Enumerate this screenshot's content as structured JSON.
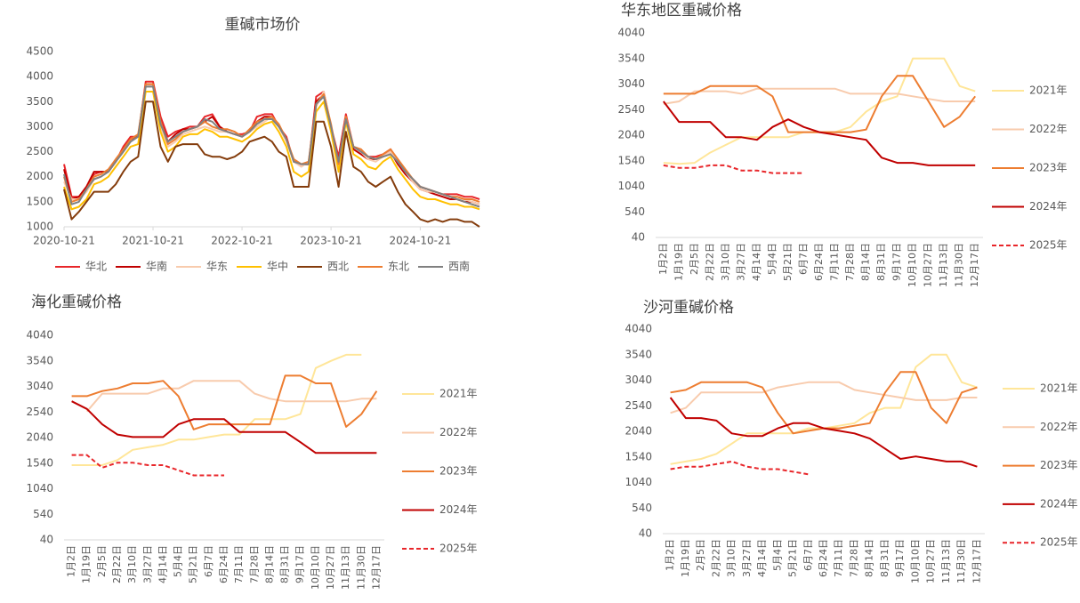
{
  "chart_data": [
    {
      "type": "line",
      "title": "重碱市场价",
      "legend": "bottom",
      "grid": false,
      "x": [
        "2020-10-21",
        "2020-11-21",
        "2020-12-21",
        "2021-01-21",
        "2021-02-21",
        "2021-03-21",
        "2021-04-21",
        "2021-05-21",
        "2021-06-21",
        "2021-07-21",
        "2021-08-21",
        "2021-09-21",
        "2021-10-21",
        "2021-11-21",
        "2021-12-21",
        "2022-01-21",
        "2022-02-21",
        "2022-03-21",
        "2022-04-21",
        "2022-05-21",
        "2022-06-21",
        "2022-07-21",
        "2022-08-21",
        "2022-09-21",
        "2022-10-21",
        "2022-11-21",
        "2022-12-21",
        "2023-01-21",
        "2023-02-21",
        "2023-03-21",
        "2023-04-21",
        "2023-05-21",
        "2023-06-21",
        "2023-07-21",
        "2023-08-21",
        "2023-09-21",
        "2023-10-21",
        "2023-11-21",
        "2023-12-21",
        "2024-01-21",
        "2024-02-21",
        "2024-03-21",
        "2024-04-21",
        "2024-05-21",
        "2024-06-21",
        "2024-07-21",
        "2024-08-21",
        "2024-09-21",
        "2024-10-21",
        "2024-11-21",
        "2024-12-21",
        "2025-01-21",
        "2025-02-21",
        "2025-03-21",
        "2025-04-21",
        "2025-05-21",
        "2025-06-21"
      ],
      "xlim": [
        "2020-10-21",
        "2025-06-21"
      ],
      "xticks": [
        "2020-10-21",
        "2021-10-21",
        "2022-10-21",
        "2023-10-21",
        "2024-10-21"
      ],
      "ylim": [
        1000,
        4500
      ],
      "yticks": [
        1000,
        1500,
        2000,
        2500,
        3000,
        3500,
        4000,
        4500
      ],
      "series": [
        {
          "name": "华北",
          "color": "#e8262a",
          "values": [
            2250,
            1600,
            1600,
            1800,
            2050,
            2100,
            2100,
            2300,
            2600,
            2800,
            2800,
            3900,
            3900,
            3200,
            2800,
            2900,
            2950,
            3000,
            3000,
            3200,
            3250,
            3000,
            2900,
            2850,
            2850,
            2900,
            3200,
            3250,
            3250,
            3000,
            2800,
            2300,
            2250,
            2250,
            3600,
            3700,
            3000,
            2400,
            3250,
            2600,
            2500,
            2400,
            2400,
            2450,
            2550,
            2300,
            2100,
            1950,
            1800,
            1750,
            1700,
            1650,
            1650,
            1650,
            1600,
            1600,
            1550
          ]
        },
        {
          "name": "华南",
          "color": "#c00000",
          "values": [
            2150,
            1550,
            1600,
            1800,
            2100,
            2100,
            2100,
            2300,
            2550,
            2750,
            2800,
            3850,
            3850,
            3100,
            2700,
            2850,
            2950,
            2950,
            3000,
            3100,
            3200,
            3000,
            2900,
            2850,
            2800,
            2900,
            3100,
            3200,
            3200,
            3000,
            2750,
            2300,
            2250,
            2250,
            3500,
            3650,
            3000,
            2300,
            3200,
            2550,
            2450,
            2350,
            2350,
            2400,
            2500,
            2250,
            2050,
            1900,
            1750,
            1700,
            1650,
            1600,
            1550,
            1550,
            1500,
            1500,
            1450
          ]
        },
        {
          "name": "华东",
          "color": "#f8cbad",
          "values": [
            1900,
            1550,
            1550,
            1700,
            1950,
            2000,
            2100,
            2300,
            2500,
            2700,
            2800,
            3800,
            3800,
            3000,
            2600,
            2700,
            2850,
            2900,
            2950,
            3000,
            2950,
            2900,
            2900,
            2850,
            2800,
            2900,
            3000,
            3100,
            3200,
            3000,
            2700,
            2300,
            2200,
            2300,
            3400,
            3700,
            3000,
            2200,
            3200,
            2600,
            2500,
            2350,
            2300,
            2400,
            2500,
            2300,
            2100,
            1900,
            1750,
            1700,
            1700,
            1650,
            1600,
            1550,
            1550,
            1500,
            1450
          ]
        },
        {
          "name": "华中",
          "color": "#ffc000",
          "values": [
            1800,
            1350,
            1400,
            1550,
            1850,
            1900,
            2000,
            2200,
            2400,
            2600,
            2650,
            3700,
            3700,
            2900,
            2500,
            2600,
            2800,
            2850,
            2850,
            2950,
            2900,
            2800,
            2800,
            2750,
            2700,
            2800,
            2950,
            3050,
            3100,
            2900,
            2600,
            2100,
            2000,
            2100,
            3300,
            3500,
            2900,
            2100,
            3100,
            2450,
            2350,
            2200,
            2150,
            2300,
            2400,
            2150,
            1950,
            1750,
            1600,
            1550,
            1550,
            1500,
            1450,
            1450,
            1400,
            1400,
            1350
          ]
        },
        {
          "name": "西北",
          "color": "#843c0c",
          "values": [
            1750,
            1150,
            1300,
            1500,
            1700,
            1700,
            1700,
            1850,
            2100,
            2300,
            2400,
            3500,
            3500,
            2600,
            2300,
            2600,
            2650,
            2650,
            2650,
            2450,
            2400,
            2400,
            2350,
            2400,
            2500,
            2700,
            2750,
            2800,
            2700,
            2500,
            2400,
            1800,
            1800,
            1800,
            3100,
            3100,
            2600,
            1800,
            2900,
            2200,
            2100,
            1900,
            1800,
            1900,
            2000,
            1700,
            1450,
            1300,
            1150,
            1100,
            1150,
            1100,
            1150,
            1150,
            1100,
            1100,
            1000
          ]
        },
        {
          "name": "东北",
          "color": "#ed7d31",
          "values": [
            2000,
            1500,
            1550,
            1750,
            2000,
            2050,
            2150,
            2350,
            2550,
            2750,
            2850,
            3850,
            3850,
            3100,
            2650,
            2750,
            2900,
            2950,
            3000,
            3100,
            3000,
            2950,
            2950,
            2900,
            2800,
            2950,
            3100,
            3150,
            3200,
            3050,
            2750,
            2350,
            2250,
            2300,
            3450,
            3650,
            3050,
            2250,
            3200,
            2600,
            2550,
            2400,
            2350,
            2450,
            2550,
            2350,
            2150,
            1950,
            1800,
            1750,
            1700,
            1650,
            1600,
            1600,
            1550,
            1550,
            1500
          ]
        },
        {
          "name": "西南",
          "color": "#808080",
          "values": [
            2050,
            1450,
            1500,
            1750,
            1950,
            2000,
            2100,
            2300,
            2500,
            2700,
            2800,
            3800,
            3800,
            3050,
            2700,
            2800,
            2900,
            2950,
            3000,
            3150,
            3100,
            2950,
            2900,
            2850,
            2800,
            2900,
            3050,
            3150,
            3150,
            3000,
            2750,
            2300,
            2250,
            2250,
            3450,
            3600,
            3000,
            2300,
            3150,
            2600,
            2500,
            2400,
            2350,
            2400,
            2450,
            2300,
            2100,
            1950,
            1800,
            1750,
            1700,
            1650,
            1600,
            1550,
            1500,
            1450,
            1400
          ]
        }
      ]
    },
    {
      "type": "line",
      "title": "华东地区重碱价格",
      "legend": "right",
      "grid": false,
      "categories": [
        "1月2日",
        "1月19日",
        "2月5日",
        "2月22日",
        "3月10日",
        "3月27日",
        "4月14日",
        "5月4日",
        "5月21日",
        "6月7日",
        "6月24日",
        "7月11日",
        "7月28日",
        "8月14日",
        "8月31日",
        "9月17日",
        "10月10日",
        "10月27日",
        "11月13日",
        "11月30日",
        "12月17日"
      ],
      "ylim": [
        40,
        4040
      ],
      "yticks": [
        40,
        540,
        1040,
        1540,
        2040,
        2540,
        3040,
        3540,
        4040
      ],
      "series": [
        {
          "name": "2021年",
          "color": "#ffe699",
          "dashed": false,
          "values": [
            1500,
            1480,
            1500,
            1700,
            1850,
            2000,
            2000,
            2000,
            2000,
            2100,
            2100,
            2100,
            2200,
            2500,
            2700,
            2800,
            3540,
            3540,
            3540,
            3000,
            2900
          ]
        },
        {
          "name": "2022年",
          "color": "#f8cbad",
          "dashed": false,
          "values": [
            2650,
            2700,
            2900,
            2900,
            2900,
            2850,
            2950,
            2950,
            2950,
            2950,
            2950,
            2950,
            2850,
            2850,
            2850,
            2850,
            2800,
            2750,
            2700,
            2700,
            2700
          ]
        },
        {
          "name": "2023年",
          "color": "#ed7d31",
          "dashed": false,
          "values": [
            2850,
            2850,
            2850,
            3000,
            3000,
            3000,
            3000,
            2800,
            2100,
            2100,
            2100,
            2100,
            2100,
            2150,
            2800,
            3200,
            3200,
            2700,
            2200,
            2400,
            2800
          ]
        },
        {
          "name": "2024年",
          "color": "#c00000",
          "dashed": false,
          "values": [
            2700,
            2300,
            2300,
            2300,
            2000,
            2000,
            1950,
            2200,
            2350,
            2200,
            2100,
            2050,
            2000,
            1950,
            1600,
            1500,
            1500,
            1450,
            1450,
            1450,
            1450
          ]
        },
        {
          "name": "2025年",
          "color": "#e8262a",
          "dashed": true,
          "values": [
            1450,
            1400,
            1400,
            1450,
            1450,
            1350,
            1350,
            1300,
            1300,
            1300,
            null,
            null,
            null,
            null,
            null,
            null,
            null,
            null,
            null,
            null,
            null
          ]
        }
      ]
    },
    {
      "type": "line",
      "title": "海化重碱价格",
      "legend": "right",
      "grid": false,
      "categories": [
        "1月2日",
        "1月19日",
        "2月5日",
        "2月22日",
        "3月10日",
        "3月27日",
        "4月14日",
        "5月4日",
        "5月21日",
        "6月7日",
        "6月24日",
        "7月11日",
        "7月28日",
        "8月14日",
        "8月31日",
        "9月17日",
        "10月10日",
        "10月27日",
        "11月13日",
        "11月30日",
        "12月17日"
      ],
      "ylim": [
        40,
        4040
      ],
      "yticks": [
        40,
        540,
        1040,
        1540,
        2040,
        2540,
        3040,
        3540,
        4040
      ],
      "series": [
        {
          "name": "2021年",
          "color": "#ffe699",
          "dashed": false,
          "values": [
            1500,
            1500,
            1500,
            1600,
            1800,
            1850,
            1900,
            2000,
            2000,
            2050,
            2100,
            2100,
            2400,
            2400,
            2400,
            2500,
            3400,
            3540,
            3660,
            3660,
            null
          ]
        },
        {
          "name": "2022年",
          "color": "#f8cbad",
          "dashed": false,
          "values": [
            null,
            2550,
            2900,
            2900,
            2900,
            2900,
            3000,
            3000,
            3150,
            3150,
            3150,
            3150,
            2900,
            2800,
            2750,
            2750,
            2750,
            2750,
            2750,
            2800,
            2800
          ]
        },
        {
          "name": "2023年",
          "color": "#ed7d31",
          "dashed": false,
          "values": [
            2850,
            2850,
            2950,
            3000,
            3100,
            3100,
            3150,
            2850,
            2200,
            2300,
            2300,
            2300,
            2300,
            2300,
            3250,
            3250,
            3100,
            3100,
            2250,
            2500,
            2950
          ]
        },
        {
          "name": "2024年",
          "color": "#c00000",
          "dashed": false,
          "values": [
            2750,
            2600,
            2300,
            2100,
            2050,
            2050,
            2050,
            2300,
            2400,
            2400,
            2400,
            2150,
            2150,
            2150,
            2150,
            1950,
            1740,
            1740,
            1740,
            1740,
            1740
          ]
        },
        {
          "name": "2025年",
          "color": "#e8262a",
          "dashed": true,
          "values": [
            1700,
            1700,
            1450,
            1550,
            1550,
            1500,
            1500,
            1400,
            1300,
            1300,
            1300,
            null,
            null,
            null,
            null,
            null,
            null,
            null,
            null,
            null,
            null
          ]
        }
      ]
    },
    {
      "type": "line",
      "title": "沙河重碱价格",
      "legend": "right",
      "grid": false,
      "categories": [
        "1月2日",
        "1月19日",
        "2月5日",
        "2月22日",
        "3月10日",
        "3月27日",
        "4月14日",
        "5月4日",
        "5月21日",
        "6月7日",
        "6月24日",
        "7月11日",
        "7月28日",
        "8月14日",
        "8月31日",
        "9月17日",
        "10月10日",
        "10月27日",
        "11月13日",
        "11月30日",
        "12月17日"
      ],
      "ylim": [
        40,
        4040
      ],
      "yticks": [
        40,
        540,
        1040,
        1540,
        2040,
        2540,
        3040,
        3540,
        4040
      ],
      "series": [
        {
          "name": "2021年",
          "color": "#ffe699",
          "dashed": false,
          "values": [
            1400,
            1450,
            1500,
            1600,
            1800,
            2000,
            2000,
            2000,
            2000,
            2100,
            2100,
            2150,
            2200,
            2400,
            2500,
            2500,
            3300,
            3540,
            3540,
            3000,
            2900
          ]
        },
        {
          "name": "2022年",
          "color": "#f8cbad",
          "dashed": false,
          "values": [
            2400,
            2500,
            2800,
            2800,
            2800,
            2800,
            2800,
            2900,
            2950,
            3000,
            3000,
            3000,
            2850,
            2800,
            2750,
            2700,
            2650,
            2650,
            2650,
            2700,
            2700
          ]
        },
        {
          "name": "2023年",
          "color": "#ed7d31",
          "dashed": false,
          "values": [
            2800,
            2850,
            3000,
            3000,
            3000,
            3000,
            2900,
            2400,
            2000,
            2050,
            2100,
            2100,
            2150,
            2200,
            2800,
            3200,
            3200,
            2500,
            2200,
            2800,
            2900
          ]
        },
        {
          "name": "2024年",
          "color": "#c00000",
          "dashed": false,
          "values": [
            2700,
            2300,
            2300,
            2250,
            2000,
            1950,
            1950,
            2100,
            2200,
            2200,
            2100,
            2050,
            2000,
            1900,
            1700,
            1500,
            1550,
            1500,
            1450,
            1450,
            1350
          ]
        },
        {
          "name": "2025年",
          "color": "#e8262a",
          "dashed": true,
          "values": [
            1300,
            1350,
            1350,
            1400,
            1450,
            1350,
            1300,
            1300,
            1250,
            1200,
            null,
            null,
            null,
            null,
            null,
            null,
            null,
            null,
            null,
            null,
            null
          ]
        }
      ]
    }
  ]
}
